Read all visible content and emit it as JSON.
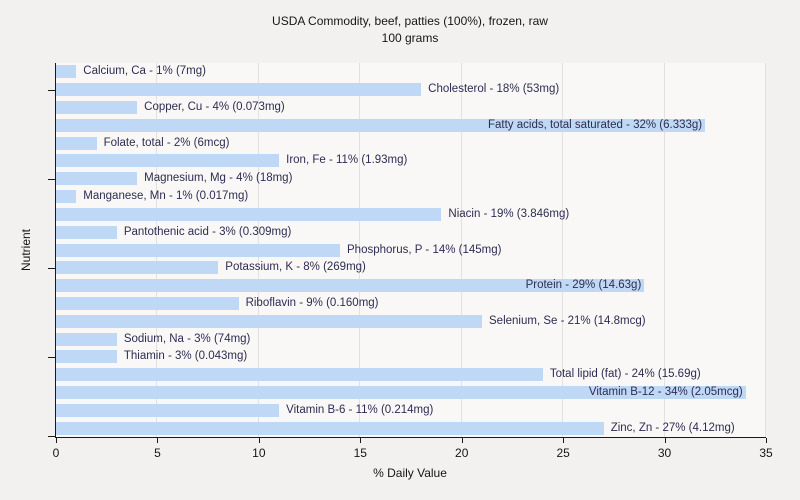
{
  "title": {
    "line1": "USDA Commodity, beef, patties (100%), frozen, raw",
    "line2": "100 grams"
  },
  "chart_data": {
    "type": "bar",
    "orientation": "horizontal",
    "title": "USDA Commodity, beef, patties (100%), frozen, raw",
    "subtitle": "100 grams",
    "xlabel": "% Daily Value",
    "ylabel": "Nutrient",
    "xlim": [
      0,
      35
    ],
    "x_ticks": [
      0,
      5,
      10,
      15,
      20,
      25,
      30,
      35
    ],
    "grid": "vertical-major",
    "legend": "none",
    "bar_color": "#bfd8f6",
    "label_color": "#2d2d52",
    "background_color": "#f2f1ef",
    "plot_background_color": "#f9f8f6",
    "bars": [
      {
        "nutrient": "Calcium, Ca",
        "pct": 1,
        "amount": "7mg",
        "label": "Calcium, Ca - 1% (7mg)"
      },
      {
        "nutrient": "Cholesterol",
        "pct": 18,
        "amount": "53mg",
        "label": "Cholesterol - 18% (53mg)"
      },
      {
        "nutrient": "Copper, Cu",
        "pct": 4,
        "amount": "0.073mg",
        "label": "Copper, Cu - 4% (0.073mg)"
      },
      {
        "nutrient": "Fatty acids, total saturated",
        "pct": 32,
        "amount": "6.333g",
        "label": "Fatty acids, total saturated - 32% (6.333g)"
      },
      {
        "nutrient": "Folate, total",
        "pct": 2,
        "amount": "6mcg",
        "label": "Folate, total - 2% (6mcg)"
      },
      {
        "nutrient": "Iron, Fe",
        "pct": 11,
        "amount": "1.93mg",
        "label": "Iron, Fe - 11% (1.93mg)"
      },
      {
        "nutrient": "Magnesium, Mg",
        "pct": 4,
        "amount": "18mg",
        "label": "Magnesium, Mg - 4% (18mg)"
      },
      {
        "nutrient": "Manganese, Mn",
        "pct": 1,
        "amount": "0.017mg",
        "label": "Manganese, Mn - 1% (0.017mg)"
      },
      {
        "nutrient": "Niacin",
        "pct": 19,
        "amount": "3.846mg",
        "label": "Niacin - 19% (3.846mg)"
      },
      {
        "nutrient": "Pantothenic acid",
        "pct": 3,
        "amount": "0.309mg",
        "label": "Pantothenic acid - 3% (0.309mg)"
      },
      {
        "nutrient": "Phosphorus, P",
        "pct": 14,
        "amount": "145mg",
        "label": "Phosphorus, P - 14% (145mg)"
      },
      {
        "nutrient": "Potassium, K",
        "pct": 8,
        "amount": "269mg",
        "label": "Potassium, K - 8% (269mg)"
      },
      {
        "nutrient": "Protein",
        "pct": 29,
        "amount": "14.63g",
        "label": "Protein - 29% (14.63g)"
      },
      {
        "nutrient": "Riboflavin",
        "pct": 9,
        "amount": "0.160mg",
        "label": "Riboflavin - 9% (0.160mg)"
      },
      {
        "nutrient": "Selenium, Se",
        "pct": 21,
        "amount": "14.8mcg",
        "label": "Selenium, Se - 21% (14.8mcg)"
      },
      {
        "nutrient": "Sodium, Na",
        "pct": 3,
        "amount": "74mg",
        "label": "Sodium, Na - 3% (74mg)"
      },
      {
        "nutrient": "Thiamin",
        "pct": 3,
        "amount": "0.043mg",
        "label": "Thiamin - 3% (0.043mg)"
      },
      {
        "nutrient": "Total lipid (fat)",
        "pct": 24,
        "amount": "15.69g",
        "label": "Total lipid (fat) - 24% (15.69g)"
      },
      {
        "nutrient": "Vitamin B-12",
        "pct": 34,
        "amount": "2.05mcg",
        "label": "Vitamin B-12 - 34% (2.05mcg)"
      },
      {
        "nutrient": "Vitamin B-6",
        "pct": 11,
        "amount": "0.214mg",
        "label": "Vitamin B-6 - 11% (0.214mg)"
      },
      {
        "nutrient": "Zinc, Zn",
        "pct": 27,
        "amount": "4.12mg",
        "label": "Zinc, Zn - 27% (4.12mg)"
      }
    ]
  }
}
